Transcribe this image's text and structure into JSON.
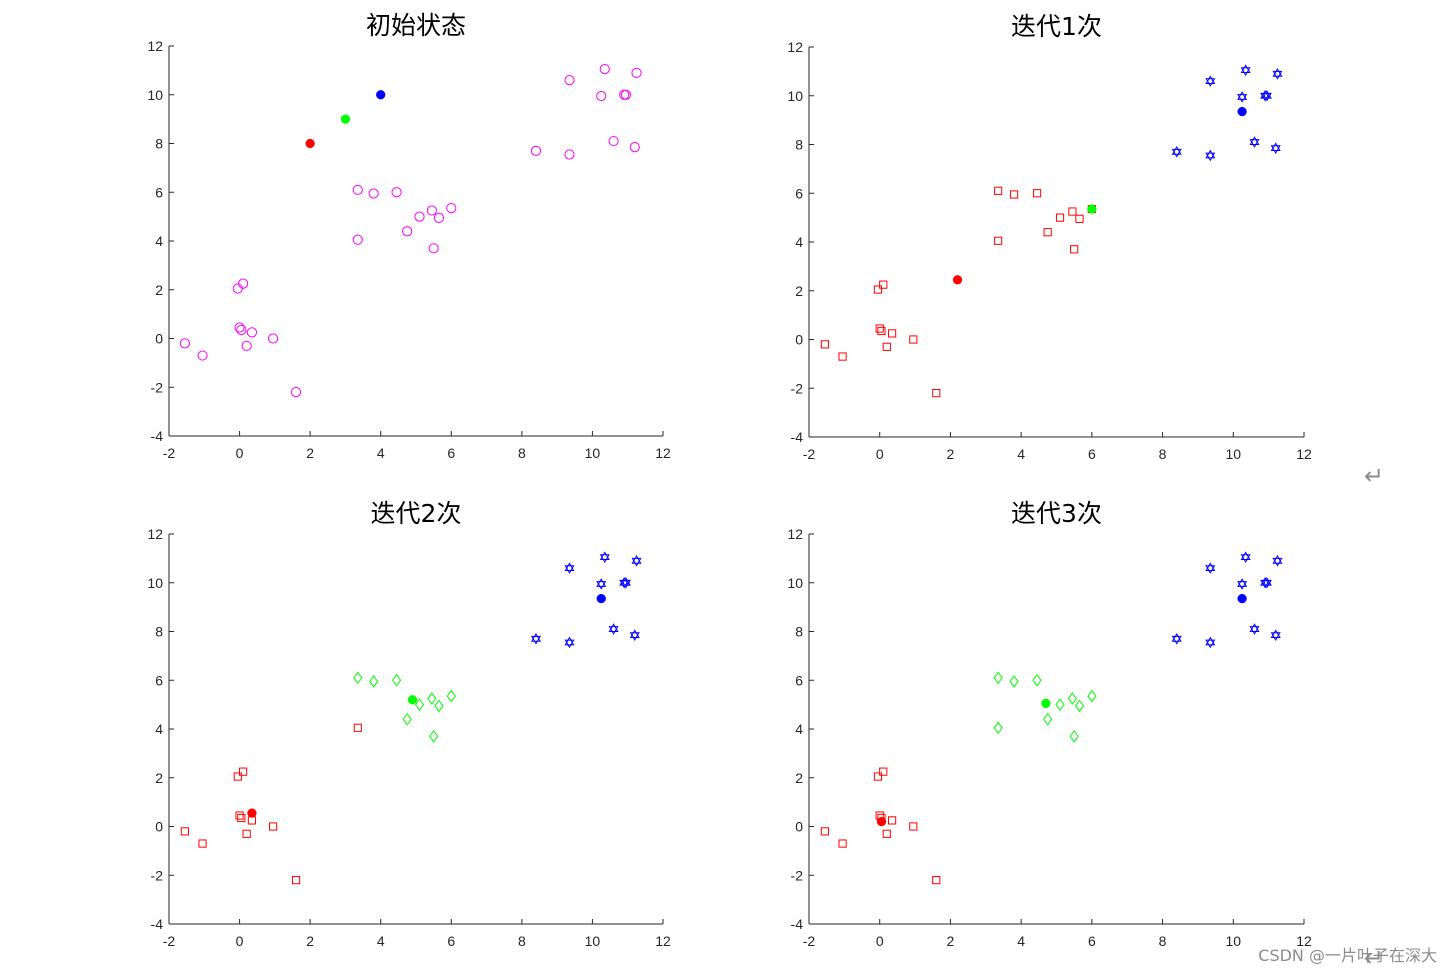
{
  "watermark": "CSDN @一片叶子在深大",
  "return_mark": "↵",
  "colors": {
    "magenta": "#ff00ff",
    "red": "#ff0000",
    "green": "#00ff00",
    "blue": "#0000ff",
    "axis": "#262626"
  },
  "chart_data": [
    {
      "type": "scatter",
      "title": "初始状态",
      "xlim": [
        -2,
        12
      ],
      "ylim": [
        -4,
        12
      ],
      "xticks": [
        -2,
        0,
        2,
        4,
        6,
        8,
        10,
        12
      ],
      "yticks": [
        -4,
        -2,
        0,
        2,
        4,
        6,
        8,
        10,
        12
      ],
      "series": [
        {
          "marker": "circle-open",
          "color": "magenta",
          "points": [
            [
              -1.55,
              -0.2
            ],
            [
              -1.05,
              -0.7
            ],
            [
              -0.05,
              2.05
            ],
            [
              0.1,
              2.25
            ],
            [
              0.0,
              0.45
            ],
            [
              0.05,
              0.35
            ],
            [
              0.35,
              0.25
            ],
            [
              0.2,
              -0.3
            ],
            [
              0.95,
              0.0
            ],
            [
              1.6,
              -2.2
            ],
            [
              3.35,
              6.1
            ],
            [
              3.8,
              5.95
            ],
            [
              4.45,
              6.0
            ],
            [
              3.35,
              4.05
            ],
            [
              4.75,
              4.4
            ],
            [
              5.1,
              5.0
            ],
            [
              5.45,
              5.25
            ],
            [
              5.65,
              4.95
            ],
            [
              6.0,
              5.35
            ],
            [
              5.5,
              3.7
            ],
            [
              9.35,
              10.6
            ],
            [
              10.35,
              11.05
            ],
            [
              11.25,
              10.9
            ],
            [
              10.25,
              9.95
            ],
            [
              10.9,
              10.0
            ],
            [
              10.95,
              10.0
            ],
            [
              8.4,
              7.7
            ],
            [
              9.35,
              7.55
            ],
            [
              10.6,
              8.1
            ],
            [
              11.2,
              7.85
            ]
          ]
        },
        {
          "marker": "filled-dot",
          "color": "red",
          "points": [
            [
              2.0,
              8.0
            ]
          ]
        },
        {
          "marker": "filled-dot",
          "color": "green",
          "points": [
            [
              3.0,
              9.0
            ]
          ]
        },
        {
          "marker": "filled-dot",
          "color": "blue",
          "points": [
            [
              4.0,
              10.0
            ]
          ]
        }
      ]
    },
    {
      "type": "scatter",
      "title": "迭代1次",
      "xlim": [
        -2,
        12
      ],
      "ylim": [
        -4,
        12
      ],
      "xticks": [
        -2,
        0,
        2,
        4,
        6,
        8,
        10,
        12
      ],
      "yticks": [
        -4,
        -2,
        0,
        2,
        4,
        6,
        8,
        10,
        12
      ],
      "series": [
        {
          "marker": "square-open",
          "color": "red",
          "points": [
            [
              -1.55,
              -0.2
            ],
            [
              -1.05,
              -0.7
            ],
            [
              -0.05,
              2.05
            ],
            [
              0.1,
              2.25
            ],
            [
              0.0,
              0.45
            ],
            [
              0.05,
              0.35
            ],
            [
              0.35,
              0.25
            ],
            [
              0.2,
              -0.3
            ],
            [
              0.95,
              0.0
            ],
            [
              1.6,
              -2.2
            ],
            [
              3.35,
              6.1
            ],
            [
              3.8,
              5.95
            ],
            [
              4.45,
              6.0
            ],
            [
              3.35,
              4.05
            ],
            [
              4.75,
              4.4
            ],
            [
              5.1,
              5.0
            ],
            [
              5.45,
              5.25
            ],
            [
              5.65,
              4.95
            ],
            [
              6.0,
              5.35
            ],
            [
              5.5,
              3.7
            ]
          ]
        },
        {
          "marker": "hexagram",
          "color": "blue",
          "points": [
            [
              9.35,
              10.6
            ],
            [
              10.35,
              11.05
            ],
            [
              11.25,
              10.9
            ],
            [
              10.25,
              9.95
            ],
            [
              10.9,
              10.0
            ],
            [
              10.95,
              10.0
            ],
            [
              8.4,
              7.7
            ],
            [
              9.35,
              7.55
            ],
            [
              10.6,
              8.1
            ],
            [
              11.2,
              7.85
            ]
          ]
        },
        {
          "marker": "filled-dot",
          "color": "red",
          "points": [
            [
              2.2,
              2.45
            ]
          ]
        },
        {
          "marker": "filled-dot",
          "color": "green",
          "points": [
            [
              6.0,
              5.35
            ]
          ]
        },
        {
          "marker": "filled-dot",
          "color": "blue",
          "points": [
            [
              10.25,
              9.35
            ]
          ]
        }
      ]
    },
    {
      "type": "scatter",
      "title": "迭代2次",
      "xlim": [
        -2,
        12
      ],
      "ylim": [
        -4,
        12
      ],
      "xticks": [
        -2,
        0,
        2,
        4,
        6,
        8,
        10,
        12
      ],
      "yticks": [
        -4,
        -2,
        0,
        2,
        4,
        6,
        8,
        10,
        12
      ],
      "series": [
        {
          "marker": "square-open",
          "color": "red",
          "points": [
            [
              -1.55,
              -0.2
            ],
            [
              -1.05,
              -0.7
            ],
            [
              -0.05,
              2.05
            ],
            [
              0.1,
              2.25
            ],
            [
              0.0,
              0.45
            ],
            [
              0.05,
              0.35
            ],
            [
              0.35,
              0.25
            ],
            [
              0.2,
              -0.3
            ],
            [
              0.95,
              0.0
            ],
            [
              1.6,
              -2.2
            ],
            [
              3.35,
              4.05
            ]
          ]
        },
        {
          "marker": "diamond-open",
          "color": "green",
          "points": [
            [
              3.35,
              6.1
            ],
            [
              3.8,
              5.95
            ],
            [
              4.45,
              6.0
            ],
            [
              4.75,
              4.4
            ],
            [
              5.1,
              5.0
            ],
            [
              5.45,
              5.25
            ],
            [
              5.65,
              4.95
            ],
            [
              6.0,
              5.35
            ],
            [
              5.5,
              3.7
            ]
          ]
        },
        {
          "marker": "hexagram",
          "color": "blue",
          "points": [
            [
              9.35,
              10.6
            ],
            [
              10.35,
              11.05
            ],
            [
              11.25,
              10.9
            ],
            [
              10.25,
              9.95
            ],
            [
              10.9,
              10.0
            ],
            [
              10.95,
              10.0
            ],
            [
              8.4,
              7.7
            ],
            [
              9.35,
              7.55
            ],
            [
              10.6,
              8.1
            ],
            [
              11.2,
              7.85
            ]
          ]
        },
        {
          "marker": "filled-dot",
          "color": "red",
          "points": [
            [
              0.35,
              0.55
            ]
          ]
        },
        {
          "marker": "filled-dot",
          "color": "green",
          "points": [
            [
              4.9,
              5.2
            ]
          ]
        },
        {
          "marker": "filled-dot",
          "color": "blue",
          "points": [
            [
              10.25,
              9.35
            ]
          ]
        }
      ]
    },
    {
      "type": "scatter",
      "title": "迭代3次",
      "xlim": [
        -2,
        12
      ],
      "ylim": [
        -4,
        12
      ],
      "xticks": [
        -2,
        0,
        2,
        4,
        6,
        8,
        10,
        12
      ],
      "yticks": [
        -4,
        -2,
        0,
        2,
        4,
        6,
        8,
        10,
        12
      ],
      "series": [
        {
          "marker": "square-open",
          "color": "red",
          "points": [
            [
              -1.55,
              -0.2
            ],
            [
              -1.05,
              -0.7
            ],
            [
              -0.05,
              2.05
            ],
            [
              0.1,
              2.25
            ],
            [
              0.0,
              0.45
            ],
            [
              0.05,
              0.35
            ],
            [
              0.35,
              0.25
            ],
            [
              0.2,
              -0.3
            ],
            [
              0.95,
              0.0
            ],
            [
              1.6,
              -2.2
            ]
          ]
        },
        {
          "marker": "diamond-open",
          "color": "green",
          "points": [
            [
              3.35,
              6.1
            ],
            [
              3.8,
              5.95
            ],
            [
              4.45,
              6.0
            ],
            [
              3.35,
              4.05
            ],
            [
              4.75,
              4.4
            ],
            [
              5.1,
              5.0
            ],
            [
              5.45,
              5.25
            ],
            [
              5.65,
              4.95
            ],
            [
              6.0,
              5.35
            ],
            [
              5.5,
              3.7
            ]
          ]
        },
        {
          "marker": "hexagram",
          "color": "blue",
          "points": [
            [
              9.35,
              10.6
            ],
            [
              10.35,
              11.05
            ],
            [
              11.25,
              10.9
            ],
            [
              10.25,
              9.95
            ],
            [
              10.9,
              10.0
            ],
            [
              10.95,
              10.0
            ],
            [
              8.4,
              7.7
            ],
            [
              9.35,
              7.55
            ],
            [
              10.6,
              8.1
            ],
            [
              11.2,
              7.85
            ]
          ]
        },
        {
          "marker": "filled-dot",
          "color": "red",
          "points": [
            [
              0.05,
              0.2
            ]
          ]
        },
        {
          "marker": "filled-dot",
          "color": "green",
          "points": [
            [
              4.7,
              5.05
            ]
          ]
        },
        {
          "marker": "filled-dot",
          "color": "blue",
          "points": [
            [
              10.25,
              9.35
            ]
          ]
        }
      ]
    }
  ]
}
